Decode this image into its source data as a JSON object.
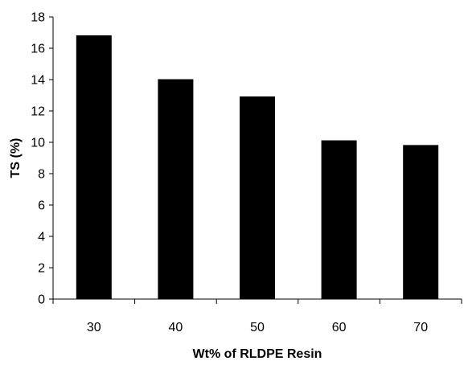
{
  "chart_data": {
    "type": "bar",
    "categories": [
      "30",
      "40",
      "50",
      "60",
      "70"
    ],
    "values": [
      16.8,
      14.0,
      12.9,
      10.1,
      9.8
    ],
    "title": "",
    "xlabel": "Wt% of RLDPE Resin",
    "ylabel": "TS (%)",
    "ylim": [
      0,
      18
    ],
    "ytick_step": 2,
    "yticks": [
      "0",
      "2",
      "4",
      "6",
      "8",
      "10",
      "12",
      "14",
      "16",
      "18"
    ],
    "grid": false,
    "legend": "none",
    "bar_color": "#000000"
  }
}
